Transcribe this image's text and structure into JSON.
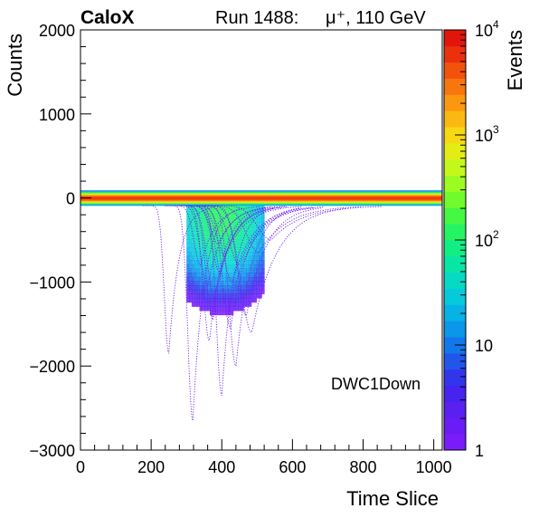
{
  "header": {
    "experiment": "CaloX",
    "run": "Run 1488:",
    "beam": "μ⁺, 110 GeV"
  },
  "chart_data": {
    "type": "heatmap",
    "xlabel": "Time Slice",
    "ylabel": "Counts",
    "zlabel": "Events",
    "xlim": [
      0,
      1024
    ],
    "ylim": [
      -3000,
      2000
    ],
    "zlim": [
      1,
      10000
    ],
    "zscale": "log",
    "x_ticks": [
      "0",
      "200",
      "400",
      "600",
      "800",
      "1000"
    ],
    "y_ticks": [
      "−3000",
      "−2000",
      "−1000",
      "0",
      "1000",
      "2000"
    ],
    "z_ticks": [
      {
        "base": "10",
        "exp": "4",
        "value": 10000
      },
      {
        "base": "10",
        "exp": "3",
        "value": 1000
      },
      {
        "base": "10",
        "exp": "2",
        "value": 100
      },
      {
        "base": "10",
        "exp": "",
        "value": 10
      },
      {
        "base": "1",
        "exp": "",
        "value": 1
      }
    ],
    "annotation": "DWC1Down",
    "baseline": {
      "x_range": [
        0,
        1024
      ],
      "y": 0,
      "half_width": 90,
      "peak_events": 5000
    },
    "dip_region": {
      "x_range": [
        300,
        520
      ],
      "y_min": -2700,
      "center_x": 400
    },
    "pulses": [
      {
        "t0": 250,
        "depth": 1850,
        "width": 18
      },
      {
        "t0": 318,
        "depth": 2650,
        "width": 20
      },
      {
        "t0": 365,
        "depth": 1700,
        "width": 25
      },
      {
        "t0": 400,
        "depth": 2350,
        "width": 22
      },
      {
        "t0": 440,
        "depth": 2000,
        "width": 28
      },
      {
        "t0": 485,
        "depth": 1600,
        "width": 45
      },
      {
        "t0": 420,
        "depth": 1350,
        "width": 40
      },
      {
        "t0": 470,
        "depth": 1400,
        "width": 35
      },
      {
        "t0": 380,
        "depth": 1200,
        "width": 30
      },
      {
        "t0": 395,
        "depth": 900,
        "width": 30
      },
      {
        "t0": 430,
        "depth": 1000,
        "width": 38
      },
      {
        "t0": 410,
        "depth": 700,
        "width": 35
      },
      {
        "t0": 360,
        "depth": 1050,
        "width": 28
      },
      {
        "t0": 450,
        "depth": 800,
        "width": 40
      },
      {
        "t0": 505,
        "depth": 650,
        "width": 50
      },
      {
        "t0": 540,
        "depth": 500,
        "width": 55
      },
      {
        "t0": 390,
        "depth": 550,
        "width": 30
      },
      {
        "t0": 340,
        "depth": 800,
        "width": 26
      },
      {
        "t0": 425,
        "depth": 1550,
        "width": 32
      },
      {
        "t0": 375,
        "depth": 1450,
        "width": 27
      }
    ]
  },
  "colors": {
    "palette": [
      "#7a1bfa",
      "#6a1cf6",
      "#5a20f2",
      "#4623ee",
      "#3236eb",
      "#2255ea",
      "#1277ea",
      "#0a96ea",
      "#07b2e6",
      "#06cadc",
      "#06dac4",
      "#08e6a6",
      "#12ee86",
      "#24f464",
      "#44f844",
      "#70fb2c",
      "#9cfb20",
      "#c4f81a",
      "#e4ec16",
      "#f8d814",
      "#fcb812",
      "#fc9810",
      "#f8760e",
      "#f2520c",
      "#ea300c",
      "#e1150c"
    ],
    "trace": "#6e1cf8"
  }
}
